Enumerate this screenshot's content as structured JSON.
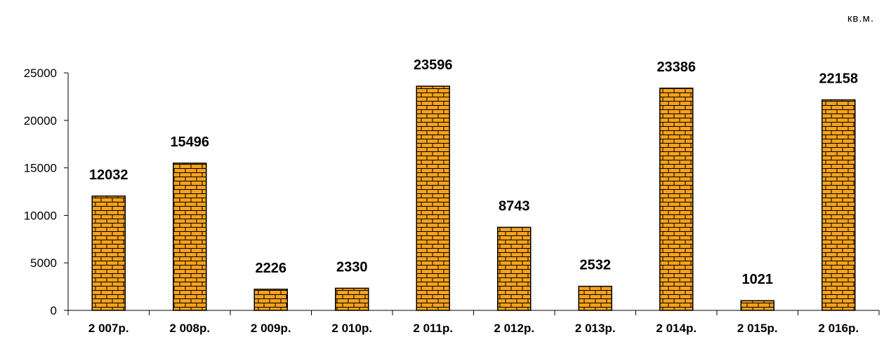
{
  "chart_data": {
    "type": "bar",
    "unit": "кв.м.",
    "categories": [
      "2 007р.",
      "2 008р.",
      "2 009р.",
      "2 010р.",
      "2 011р.",
      "2 012р.",
      "2 013р.",
      "2 014р.",
      "2 015р.",
      "2 016р."
    ],
    "values": [
      12032,
      15496,
      2226,
      2330,
      23596,
      8743,
      2532,
      23386,
      1021,
      22158
    ],
    "data_labels": [
      "12032",
      "15496",
      "2226",
      "2330",
      "23596",
      "8743",
      "2532",
      "23386",
      "1021",
      "22158"
    ],
    "ylim": [
      0,
      25000
    ],
    "yticks": [
      0,
      5000,
      10000,
      15000,
      20000,
      25000
    ],
    "ytick_labels": [
      "0",
      "5000",
      "10000",
      "15000",
      "20000",
      "25000"
    ],
    "grid": false,
    "legend": "none",
    "colors": {
      "bar_fill": "#F7A21B",
      "brick_line": "#000000"
    }
  }
}
